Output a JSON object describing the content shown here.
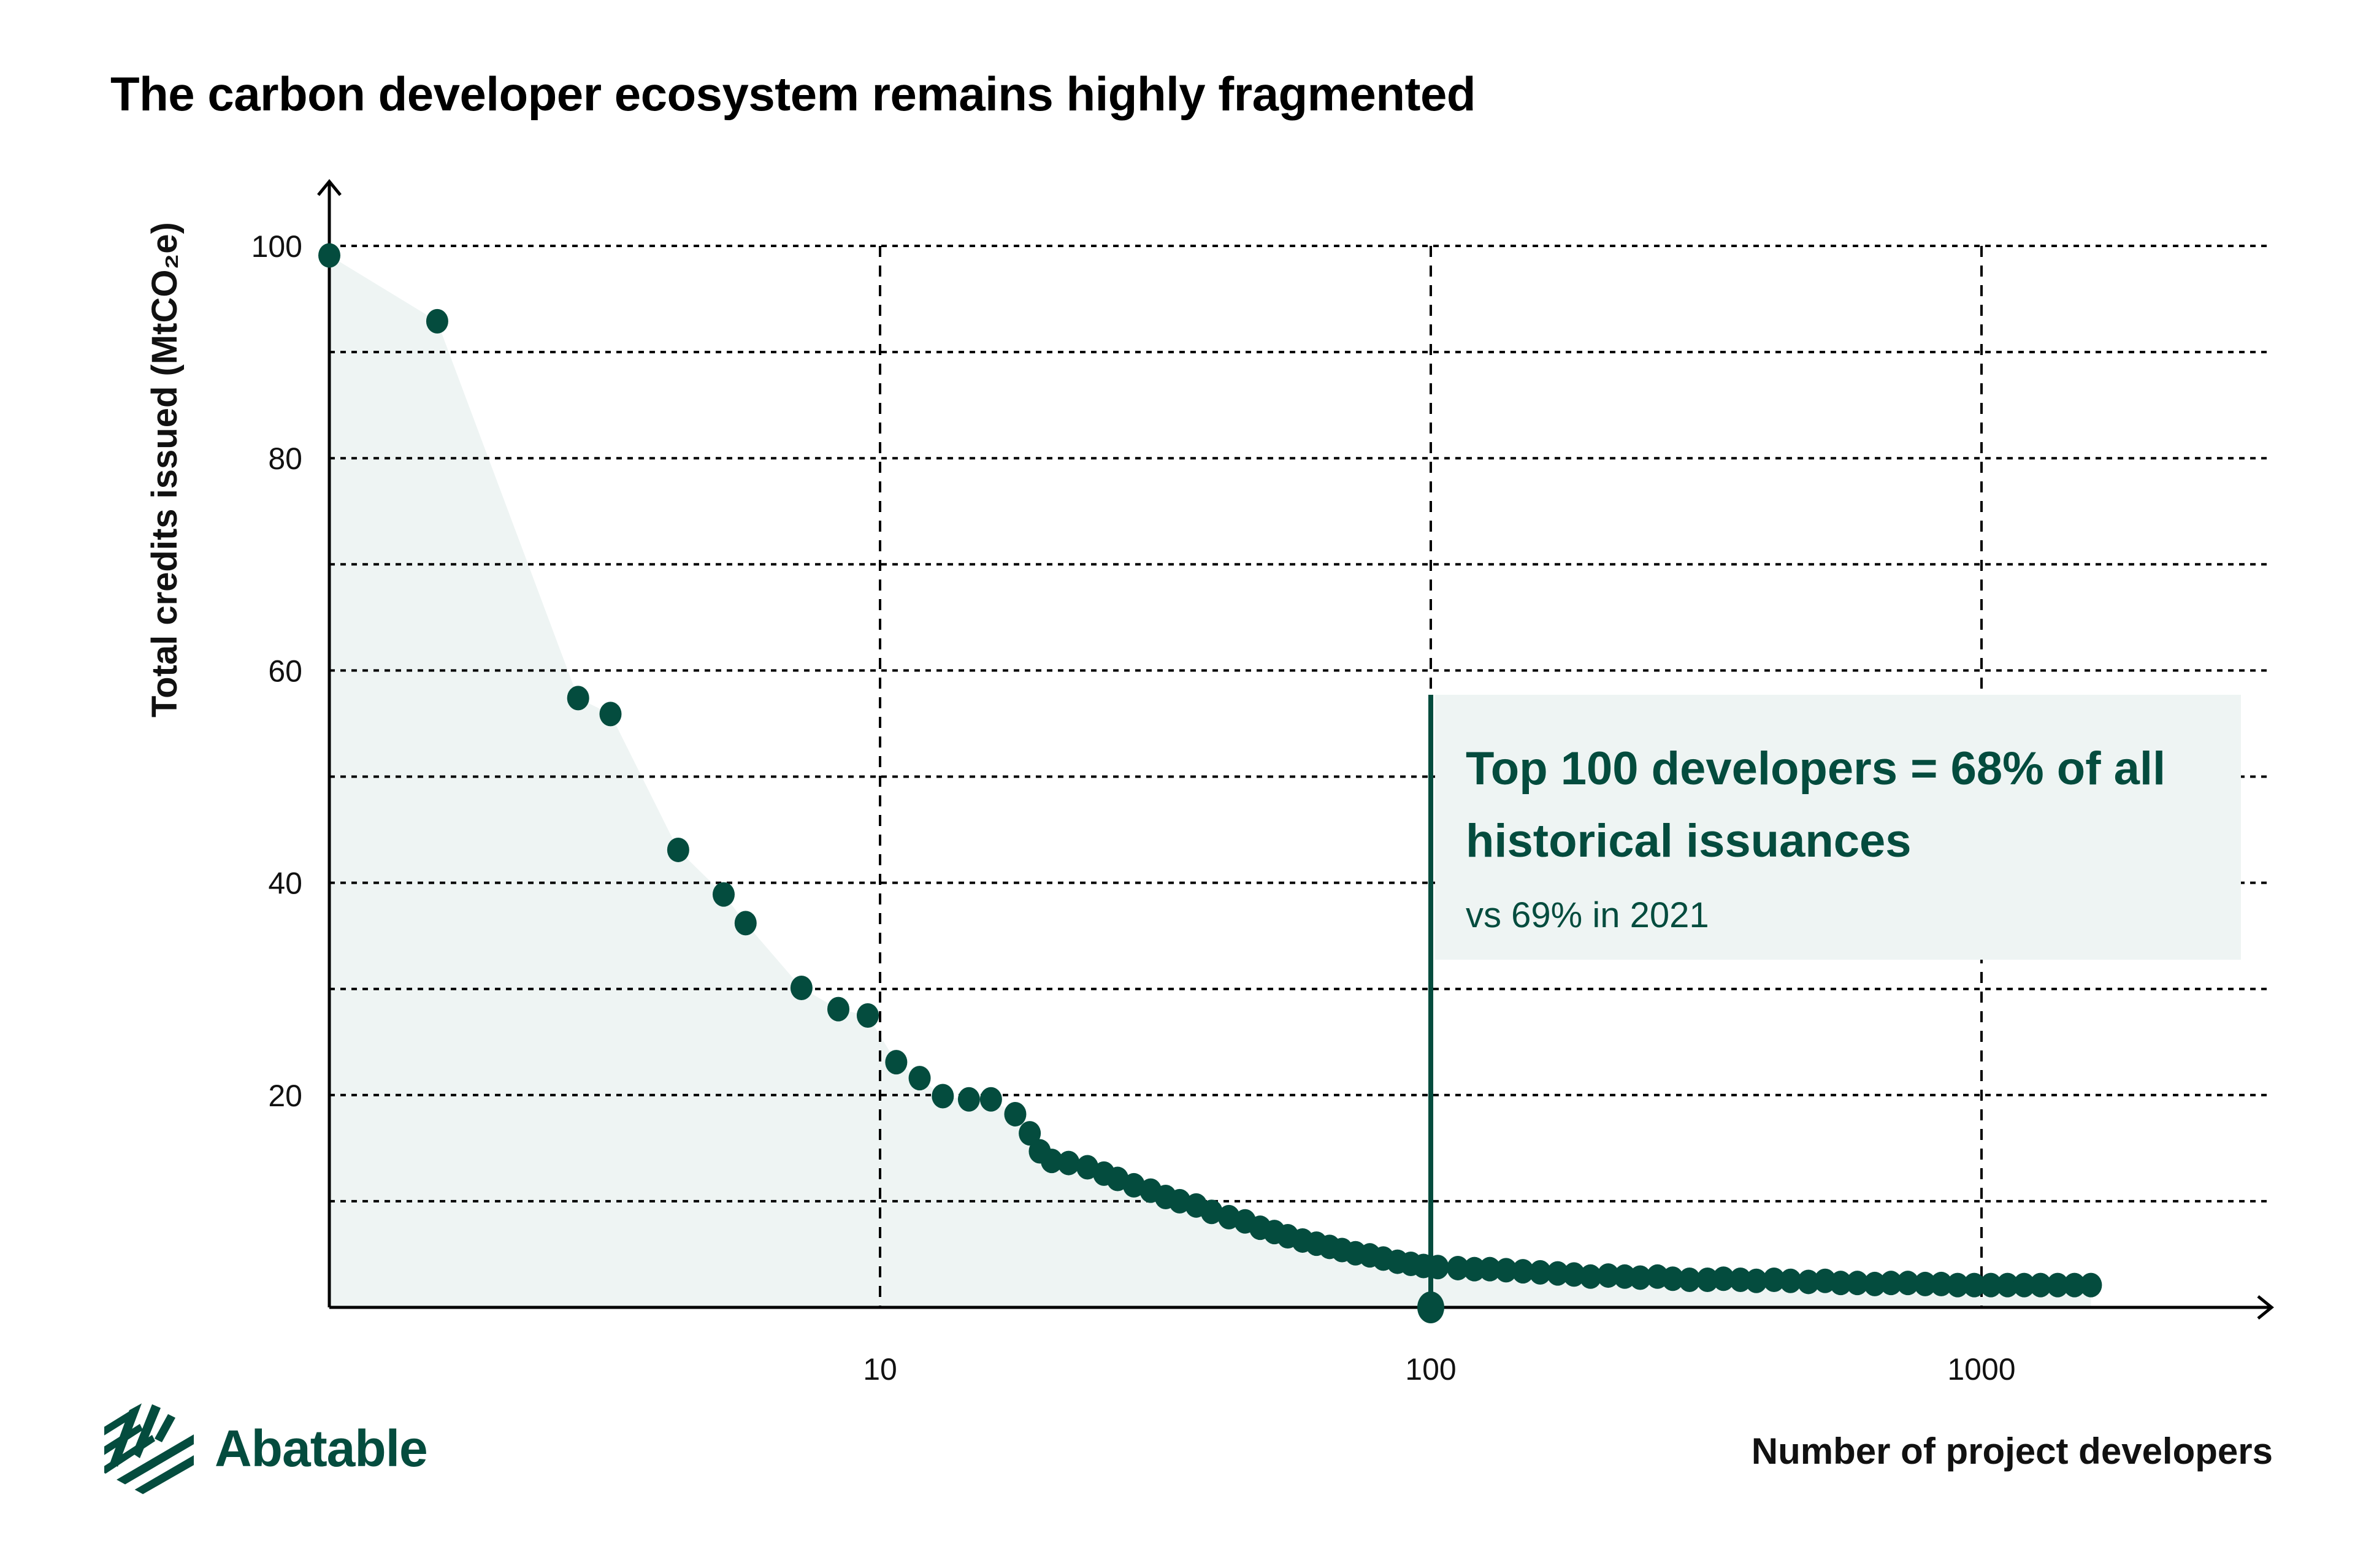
{
  "title": "The carbon developer ecosystem remains highly fragmented",
  "brand": {
    "name": "Abatable",
    "color": "#044c3e",
    "icon": "hexagon-stripes-logo-icon"
  },
  "annotation": {
    "main": "Top 100 developers = 68% of all historical issuances",
    "sub": "vs 69% in 2021",
    "marker_x": 100
  },
  "colors": {
    "point": "#044c3e",
    "area": "#eef4f3",
    "axis": "#000000",
    "grid": "#000000"
  },
  "chart_data": {
    "type": "scatter",
    "title": "The carbon developer ecosystem remains highly fragmented",
    "xlabel": "Number of project developers",
    "ylabel": "Total credits issued (MtCO₂e)",
    "x_scale": "log",
    "xlim": [
      1,
      3500
    ],
    "ylim": [
      0,
      100
    ],
    "x_ticks": [
      10,
      100,
      1000
    ],
    "x_tick_labels": [
      "10",
      "100",
      "1000"
    ],
    "y_ticks": [
      20,
      40,
      60,
      80,
      100
    ],
    "y_tick_labels": [
      "20",
      "40",
      "60",
      "80",
      "100"
    ],
    "y_gridlines": [
      10,
      20,
      30,
      40,
      50,
      60,
      70,
      80,
      90,
      100
    ],
    "x_gridlines": [
      10,
      100,
      1000
    ],
    "grid": true,
    "grid_style": "dotted",
    "area_fill": true,
    "series": [
      {
        "name": "Developers",
        "points": [
          [
            1,
            99.1
          ],
          [
            1.57,
            92.9
          ],
          [
            2.83,
            57.4
          ],
          [
            3.24,
            55.9
          ],
          [
            4.3,
            43.1
          ],
          [
            5.2,
            38.9
          ],
          [
            5.7,
            36.2
          ],
          [
            7.2,
            30.1
          ],
          [
            8.4,
            28.1
          ],
          [
            9.5,
            27.5
          ],
          [
            10.7,
            23.1
          ],
          [
            11.8,
            21.6
          ],
          [
            13.0,
            19.9
          ],
          [
            14.5,
            19.6
          ],
          [
            15.9,
            19.6
          ],
          [
            17.6,
            18.2
          ],
          [
            18.7,
            16.4
          ],
          [
            19.5,
            14.7
          ],
          [
            20.5,
            13.8
          ],
          [
            22.0,
            13.6
          ],
          [
            23.8,
            13.2
          ],
          [
            25.5,
            12.6
          ],
          [
            27.0,
            12.1
          ],
          [
            28.9,
            11.5
          ],
          [
            31.0,
            11.0
          ],
          [
            33.0,
            10.4
          ],
          [
            35.0,
            10.0
          ],
          [
            37.5,
            9.6
          ],
          [
            40.0,
            9.0
          ],
          [
            43.0,
            8.5
          ],
          [
            46.0,
            8.1
          ],
          [
            49.0,
            7.5
          ],
          [
            52.0,
            7.1
          ],
          [
            55.0,
            6.7
          ],
          [
            58.5,
            6.3
          ],
          [
            62.0,
            6.0
          ],
          [
            65.5,
            5.7
          ],
          [
            69.0,
            5.4
          ],
          [
            73.0,
            5.1
          ],
          [
            77.5,
            4.9
          ],
          [
            82.0,
            4.6
          ],
          [
            87.0,
            4.3
          ],
          [
            92.0,
            4.1
          ],
          [
            97.0,
            3.9
          ],
          [
            103,
            3.8
          ],
          [
            112,
            3.7
          ],
          [
            120,
            3.6
          ],
          [
            128,
            3.6
          ],
          [
            137,
            3.5
          ],
          [
            147,
            3.4
          ],
          [
            158,
            3.3
          ],
          [
            170,
            3.2
          ],
          [
            182,
            3.1
          ],
          [
            195,
            2.9
          ],
          [
            210,
            3.0
          ],
          [
            225,
            2.9
          ],
          [
            240,
            2.8
          ],
          [
            258,
            2.9
          ],
          [
            275,
            2.7
          ],
          [
            295,
            2.6
          ],
          [
            318,
            2.6
          ],
          [
            340,
            2.7
          ],
          [
            365,
            2.6
          ],
          [
            390,
            2.5
          ],
          [
            420,
            2.6
          ],
          [
            450,
            2.5
          ],
          [
            485,
            2.4
          ],
          [
            520,
            2.5
          ],
          [
            555,
            2.3
          ],
          [
            595,
            2.3
          ],
          [
            640,
            2.2
          ],
          [
            685,
            2.3
          ],
          [
            735,
            2.3
          ],
          [
            790,
            2.2
          ],
          [
            845,
            2.2
          ],
          [
            905,
            2.1
          ],
          [
            970,
            2.1
          ],
          [
            1040,
            2.1
          ],
          [
            1115,
            2.1
          ],
          [
            1195,
            2.1
          ],
          [
            1280,
            2.1
          ],
          [
            1375,
            2.1
          ],
          [
            1475,
            2.1
          ],
          [
            1580,
            2.1
          ]
        ]
      }
    ],
    "highlight_point": [
      100,
      0
    ],
    "annotations": [
      "Top 100 developers = 68% of all historical issuances",
      "vs 69% in 2021"
    ]
  }
}
